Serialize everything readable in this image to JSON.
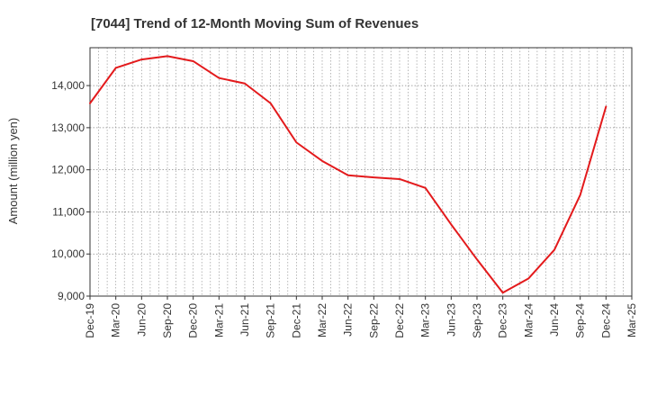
{
  "chart_data": {
    "type": "line",
    "title": "[7044]  Trend of 12-Month Moving Sum of Revenues",
    "xlabel": "",
    "ylabel": "Amount (million yen)",
    "ylim": [
      9000,
      14900
    ],
    "yticks": [
      9000,
      10000,
      11000,
      12000,
      13000,
      14000
    ],
    "ytick_labels": [
      "9,000",
      "10,000",
      "11,000",
      "12,000",
      "13,000",
      "14,000"
    ],
    "xtick_labels": [
      "Dec-19",
      "Mar-20",
      "Jun-20",
      "Sep-20",
      "Dec-20",
      "Mar-21",
      "Jun-21",
      "Sep-21",
      "Dec-21",
      "Mar-22",
      "Jun-22",
      "Sep-22",
      "Dec-22",
      "Mar-23",
      "Jun-23",
      "Sep-23",
      "Dec-23",
      "Mar-24",
      "Jun-24",
      "Sep-24",
      "Dec-24",
      "Mar-25"
    ],
    "grid": true,
    "series": [
      {
        "color": "#e31a1c",
        "x": [
          "Dec-19",
          "Mar-20",
          "Jun-20",
          "Sep-20",
          "Dec-20",
          "Mar-21",
          "Jun-21",
          "Sep-21",
          "Dec-21",
          "Mar-22",
          "Jun-22",
          "Sep-22",
          "Dec-22",
          "Mar-23",
          "Jun-23",
          "Sep-23",
          "Dec-23",
          "Mar-24",
          "Jun-24",
          "Sep-24",
          "Dec-24"
        ],
        "values": [
          13580,
          14420,
          14620,
          14700,
          14580,
          14180,
          14050,
          13580,
          12650,
          12210,
          11870,
          11820,
          11780,
          11570,
          10700,
          9870,
          9080,
          9420,
          10100,
          11400,
          13500
        ]
      }
    ]
  }
}
